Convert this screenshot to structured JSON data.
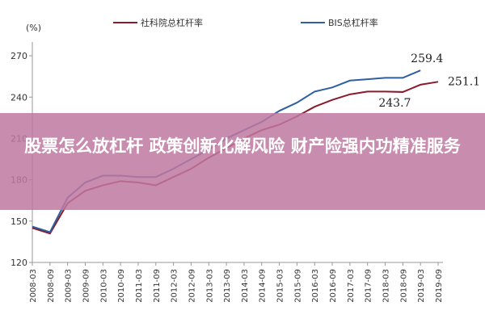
{
  "chart_data": {
    "type": "line",
    "unit_label": "(%)",
    "categories": [
      "2008-03",
      "2008-09",
      "2009-03",
      "2009-09",
      "2010-03",
      "2010-09",
      "2011-03",
      "2011-09",
      "2012-03",
      "2012-09",
      "2013-03",
      "2013-09",
      "2014-03",
      "2014-09",
      "2015-03",
      "2015-09",
      "2016-03",
      "2016-09",
      "2017-03",
      "2017-09",
      "2018-03",
      "2018-09",
      "2019-03",
      "2019-09"
    ],
    "series": [
      {
        "name": "社科院总杠杆率",
        "color": "#8b1a2b",
        "values": [
          145,
          141,
          163,
          172,
          176,
          179,
          178,
          176,
          182,
          188,
          196,
          203,
          210,
          216,
          220,
          226,
          233,
          238,
          242,
          244,
          244,
          243.7,
          249,
          251.1
        ]
      },
      {
        "name": "BIS总杠杆率",
        "color": "#2e5fa0",
        "values": [
          146,
          142,
          167,
          178,
          183,
          183,
          182,
          182,
          188,
          195,
          202,
          210,
          216,
          222,
          230,
          236,
          244,
          247,
          252,
          253,
          254,
          254,
          259.4,
          null
        ]
      }
    ],
    "labeled_points": [
      [
        1,
        22
      ],
      [
        0,
        23
      ],
      [
        0,
        21
      ]
    ],
    "ylim": [
      120,
      280
    ],
    "yticks": [
      120,
      150,
      180,
      210,
      240,
      270
    ],
    "grid": false,
    "banner": "股票怎么放杠杆 政策创新化解风险 财产险强内功精准服务"
  }
}
